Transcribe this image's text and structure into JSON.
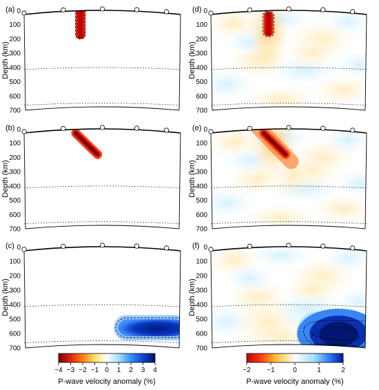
{
  "figure": {
    "panels": [
      {
        "label": "(a)",
        "side": "left"
      },
      {
        "label": "(b)",
        "side": "left"
      },
      {
        "label": "(c)",
        "side": "left"
      },
      {
        "label": "(d)",
        "side": "right"
      },
      {
        "label": "(e)",
        "side": "right"
      },
      {
        "label": "(f)",
        "side": "right"
      }
    ],
    "depth_axis": {
      "title": "Depth (km)",
      "ticks": [
        "0",
        "100",
        "200",
        "300",
        "400",
        "500",
        "600",
        "700"
      ]
    },
    "colorbars": [
      {
        "side": "left",
        "ticks": [
          "−4",
          "−3",
          "−2",
          "−1",
          "0",
          "1",
          "2",
          "3",
          "4"
        ],
        "label": "P-wave velocity anomaly (%)"
      },
      {
        "side": "right",
        "ticks": [
          "−2",
          "−1",
          "0",
          "1",
          "2"
        ],
        "label": "P-wave velocity anomaly (%)"
      }
    ],
    "colors": {
      "slow_dark": "#7a0000",
      "slow": "#e03010",
      "slow_mid": "#ffb020",
      "slow_light": "#fff2c0",
      "fast_light": "#c8ecff",
      "fast": "#40a0ff",
      "fast_dark": "#001a80",
      "neutral": "#ffffff"
    }
  }
}
